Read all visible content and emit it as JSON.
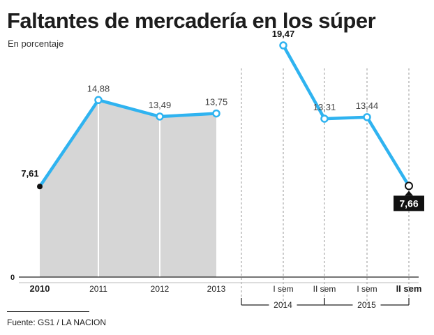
{
  "title": "Faltantes de mercadería en los súper",
  "subtitle": "En porcentaje",
  "source": "Fuente: GS1 / LA NACION",
  "colors": {
    "line": "#2fb3f0",
    "area": "#d6d6d6",
    "text": "#1a1a1a",
    "grid": "#9a9a9a",
    "highlight_label_bg": "#111111",
    "highlight_label_text": "#ffffff"
  },
  "chart_data": {
    "type": "line",
    "title": "Faltantes de mercadería en los súper",
    "ylabel": "En porcentaje",
    "ylim": [
      0,
      20
    ],
    "y_ticks": [
      "0"
    ],
    "grid": true,
    "points": [
      {
        "category": "2010",
        "value": 7.61,
        "label": "7,61",
        "bold": true
      },
      {
        "category": "2011",
        "value": 14.88,
        "label": "14,88",
        "bold": false
      },
      {
        "category": "2012",
        "value": 13.49,
        "label": "13,49",
        "bold": false
      },
      {
        "category": "2013",
        "value": 13.75,
        "label": "13,75",
        "bold": false
      },
      {
        "category": "I sem",
        "value": 19.47,
        "label": "19,47",
        "bold": true
      },
      {
        "category": "II sem",
        "value": 13.31,
        "label": "13,31",
        "bold": false
      },
      {
        "category": "I sem",
        "value": 13.44,
        "label": "13,44",
        "bold": false
      },
      {
        "category": "II sem",
        "value": 7.66,
        "label": "7,66",
        "bold": true,
        "highlight": true
      }
    ],
    "groups": [
      {
        "label": "2014",
        "members": [
          "I sem",
          "II sem"
        ]
      },
      {
        "label": "2015",
        "members": [
          "I sem",
          "II sem"
        ]
      }
    ]
  }
}
